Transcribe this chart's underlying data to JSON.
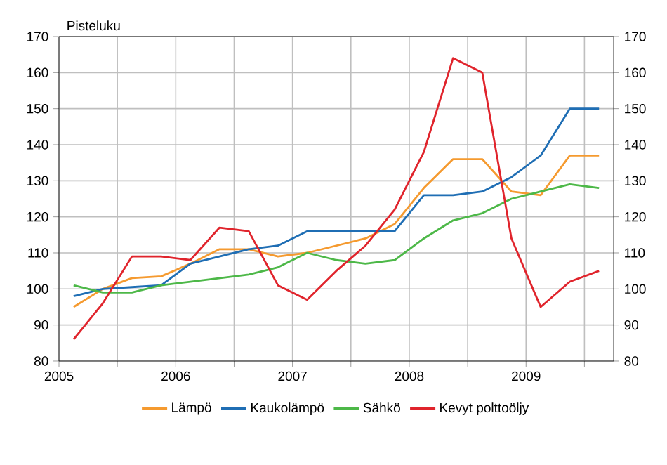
{
  "chart_data": {
    "type": "line",
    "ylabel": "Pisteluku",
    "x": [
      2005.125,
      2005.375,
      2005.625,
      2005.875,
      2006.125,
      2006.375,
      2006.625,
      2006.875,
      2007.125,
      2007.375,
      2007.625,
      2007.875,
      2008.125,
      2008.375,
      2008.625,
      2008.875,
      2009.125,
      2009.375,
      2009.625
    ],
    "xlim": [
      2005,
      2009.75
    ],
    "xticks": [
      2005,
      {
        "value": 2005.5,
        "label": null
      },
      2006,
      {
        "value": 2006.5,
        "label": null
      },
      2007,
      {
        "value": 2007.5,
        "label": null
      },
      2008,
      {
        "value": 2008.5,
        "label": null
      },
      2009,
      {
        "value": 2009.5,
        "label": null
      }
    ],
    "ylim": [
      80,
      170
    ],
    "yticks": [
      80,
      90,
      100,
      110,
      120,
      130,
      140,
      150,
      160,
      170
    ],
    "y2lim": [
      80,
      170
    ],
    "y2ticks": [
      80,
      90,
      100,
      110,
      120,
      130,
      140,
      150,
      160,
      170
    ],
    "grid": true,
    "legend": "bottom",
    "line_style": "solid",
    "marker": "none",
    "series": [
      {
        "name": "Lämpö",
        "color": "#f59a2f",
        "values": [
          95,
          100,
          103,
          103.5,
          107,
          111,
          111,
          109,
          110,
          112,
          114,
          118,
          128,
          136,
          136,
          127,
          126,
          137,
          137
        ]
      },
      {
        "name": "Kaukolämpö",
        "color": "#1f6eb4",
        "values": [
          98,
          100,
          100.5,
          101,
          107,
          109,
          111,
          112,
          116,
          116,
          116,
          116,
          126,
          126,
          127,
          131,
          137,
          150,
          150
        ]
      },
      {
        "name": "Sähkö",
        "color": "#4db848",
        "values": [
          101,
          99,
          99,
          101,
          102,
          103,
          104,
          106,
          110,
          108,
          107,
          108,
          114,
          119,
          121,
          125,
          127,
          129,
          128
        ]
      },
      {
        "name": "Kevyt polttoöljy",
        "color": "#e0242c",
        "values": [
          86,
          96,
          109,
          109,
          108,
          117,
          116,
          101,
          97,
          105,
          112,
          122,
          138,
          164,
          160,
          114,
          95,
          102,
          105
        ]
      }
    ]
  }
}
